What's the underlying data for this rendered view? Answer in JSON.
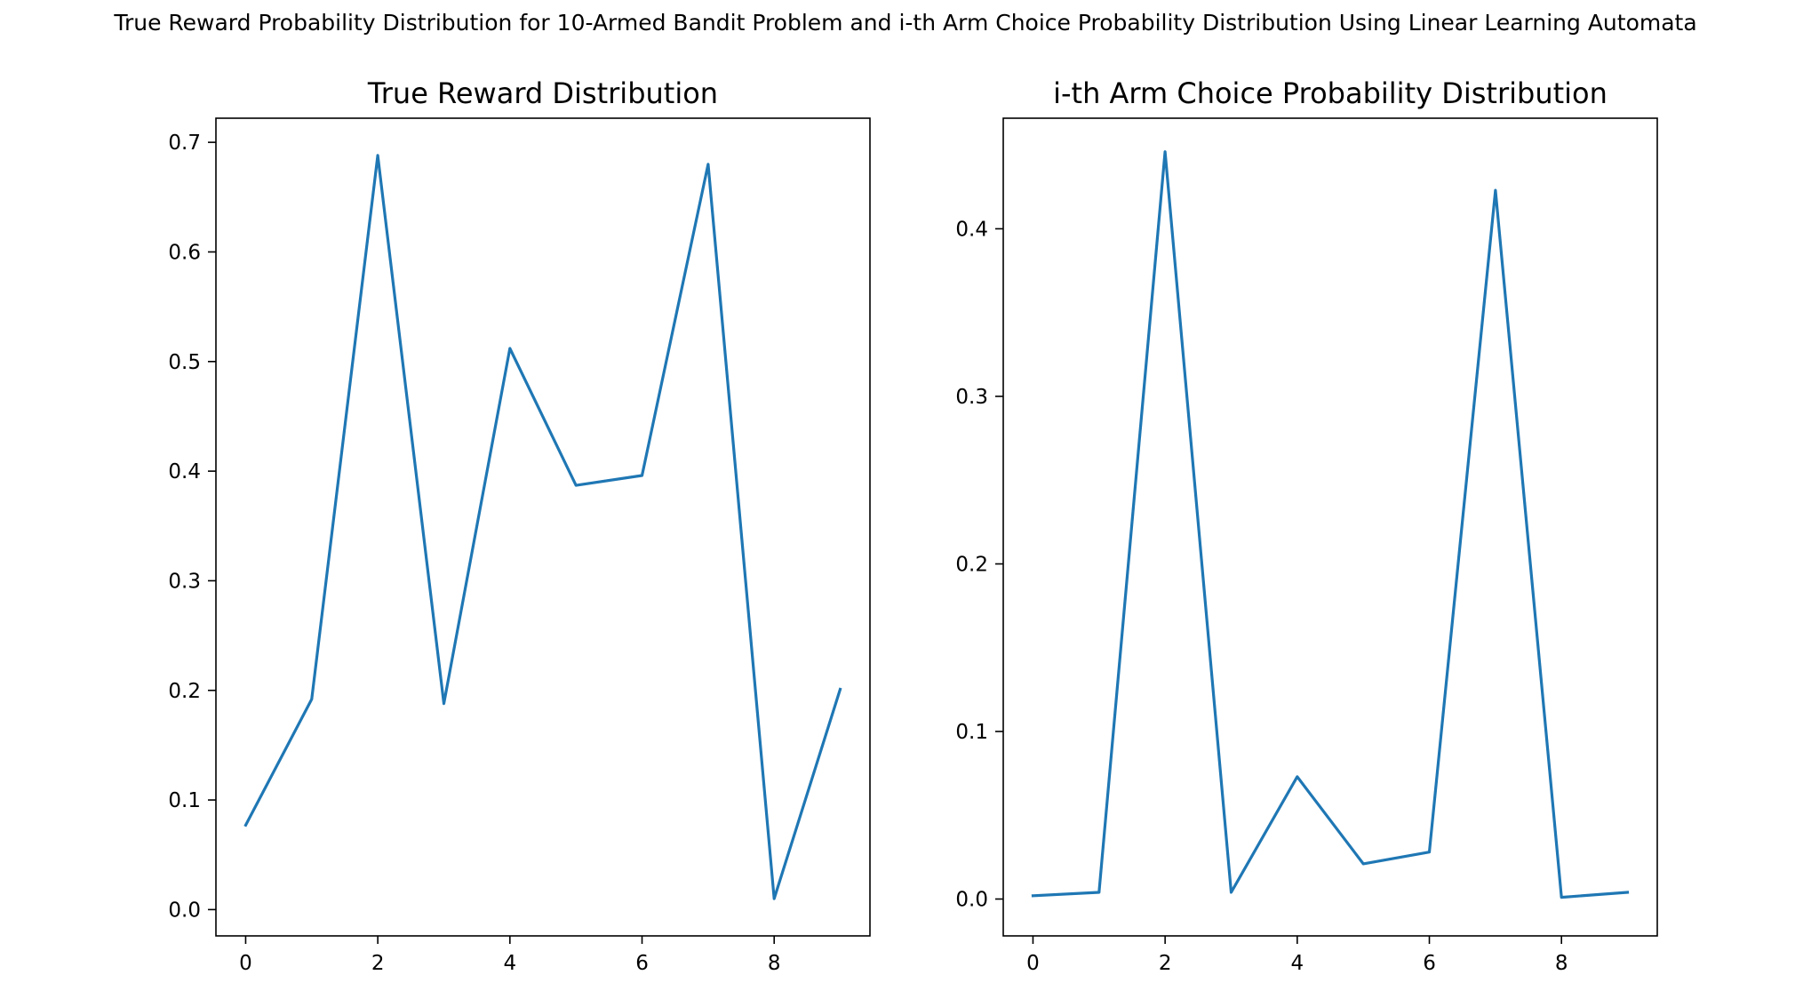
{
  "figure": {
    "suptitle": "True Reward Probability Distribution for 10-Armed Bandit Problem and i-th Arm Choice Probability Distribution Using Linear Learning Automata"
  },
  "chart_data": [
    {
      "type": "line",
      "title": "True Reward Distribution",
      "xlabel": "",
      "ylabel": "",
      "x": [
        0,
        1,
        2,
        3,
        4,
        5,
        6,
        7,
        8,
        9
      ],
      "series": [
        {
          "values": [
            0.077,
            0.192,
            0.688,
            0.188,
            0.512,
            0.387,
            0.396,
            0.68,
            0.01,
            0.201
          ],
          "color": "#1f77b4"
        }
      ],
      "xlim": [
        -0.45,
        9.45
      ],
      "ylim": [
        -0.024,
        0.722
      ],
      "xticks": [
        0,
        2,
        4,
        6,
        8
      ],
      "xtick_labels": [
        "0",
        "2",
        "4",
        "6",
        "8"
      ],
      "yticks": [
        0.0,
        0.1,
        0.2,
        0.3,
        0.4,
        0.5,
        0.6,
        0.7
      ],
      "ytick_labels": [
        "0.0",
        "0.1",
        "0.2",
        "0.3",
        "0.4",
        "0.5",
        "0.6",
        "0.7"
      ],
      "grid": false,
      "legend": "none"
    },
    {
      "type": "line",
      "title": "i-th Arm Choice Probability Distribution",
      "xlabel": "",
      "ylabel": "",
      "x": [
        0,
        1,
        2,
        3,
        4,
        5,
        6,
        7,
        8,
        9
      ],
      "series": [
        {
          "values": [
            0.002,
            0.004,
            0.446,
            0.004,
            0.073,
            0.021,
            0.028,
            0.423,
            0.001,
            0.004
          ],
          "color": "#1f77b4"
        }
      ],
      "xlim": [
        -0.45,
        9.45
      ],
      "ylim": [
        -0.022,
        0.466
      ],
      "xticks": [
        0,
        2,
        4,
        6,
        8
      ],
      "xtick_labels": [
        "0",
        "2",
        "4",
        "6",
        "8"
      ],
      "yticks": [
        0.0,
        0.1,
        0.2,
        0.3,
        0.4
      ],
      "ytick_labels": [
        "0.0",
        "0.1",
        "0.2",
        "0.3",
        "0.4"
      ],
      "grid": false,
      "legend": "none"
    }
  ]
}
